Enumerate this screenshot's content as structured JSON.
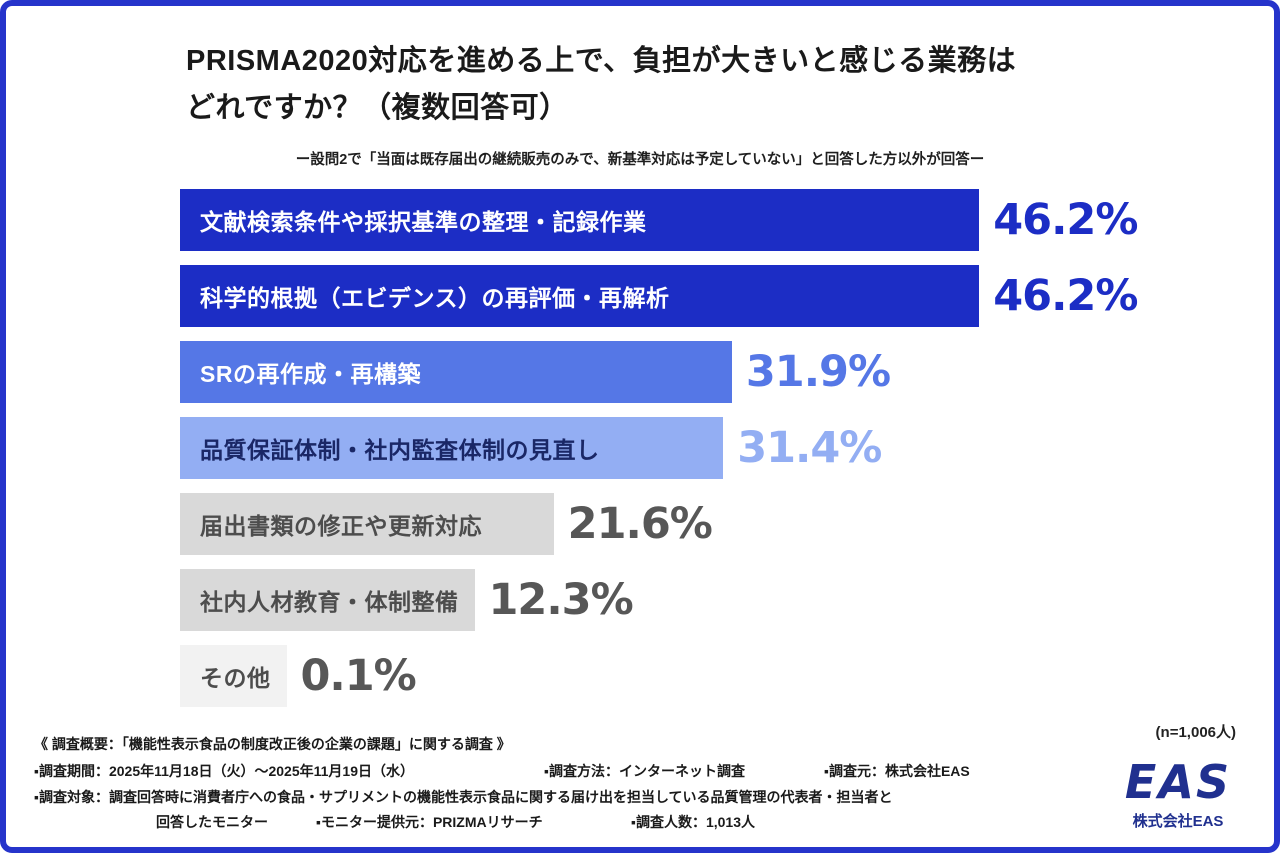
{
  "frame": {
    "border_color": "#2634cb"
  },
  "header": {
    "title_line1": "PRISMA2020対応を進める上で、負担が大きいと感じる業務は",
    "title_line2": "どれですか？（複数回答可）",
    "subtitle": "ー設問2で「当面は既存届出の継続販売のみで、新基準対応は予定していない」と回答した方以外が回答ー"
  },
  "chart_data": {
    "type": "bar",
    "orientation": "horizontal",
    "title": "PRISMA2020対応を進める上で、負担が大きいと感じる業務はどれですか？（複数回答可）",
    "categories": [
      "文献検索条件や採択基準の整理・記録作業",
      "科学的根拠（エビデンス）の再評価・再解析",
      "SRの再作成・再構築",
      "品質保証体制・社内監査体制の見直し",
      "届出書類の修正や更新対応",
      "社内人材教育・体制整備",
      "その他"
    ],
    "values": [
      46.2,
      46.2,
      31.9,
      31.4,
      21.6,
      12.3,
      0.1
    ],
    "value_labels": [
      "46.2%",
      "46.2%",
      "31.9%",
      "31.4%",
      "21.6%",
      "12.3%",
      "0.1%"
    ],
    "bar_colors": [
      "#1c2dc5",
      "#1c2dc5",
      "#5577e6",
      "#93aef3",
      "#d9d9d9",
      "#d9d9d9",
      "#f2f2f2"
    ],
    "bar_label_colors": [
      "#ffffff",
      "#ffffff",
      "#ffffff",
      "#1a2766",
      "#4d4d4d",
      "#4d4d4d",
      "#4d4d4d"
    ],
    "value_label_colors": [
      "#1c2dc5",
      "#1c2dc5",
      "#5577e6",
      "#93aef3",
      "#575757",
      "#575757",
      "#575757"
    ],
    "xlim": [
      0,
      50
    ],
    "grid": false,
    "legend": "none",
    "note": "(n=1,006人)"
  },
  "footer": {
    "heading": "《 調査概要：「機能性表示食品の制度改正後の企業の課題」に関する調査 》",
    "line1": [
      "▪調査期間：2025年11月18日（火）〜2025年11月19日（水）",
      "▪調査方法：インターネット調査",
      "▪調査元：株式会社EAS"
    ],
    "line2": "▪調査対象：調査回答時に消費者庁への食品・サプリメントの機能性表示食品に関する届け出を担当している品質管理の代表者・担当者と",
    "line3": [
      "回答したモニター",
      "▪モニター提供元：PRIZMAリサーチ",
      "▪調査人数：1,013人"
    ]
  },
  "logo": {
    "wordmark": "EAS",
    "company": "株式会社EAS",
    "color": "#20308f"
  }
}
